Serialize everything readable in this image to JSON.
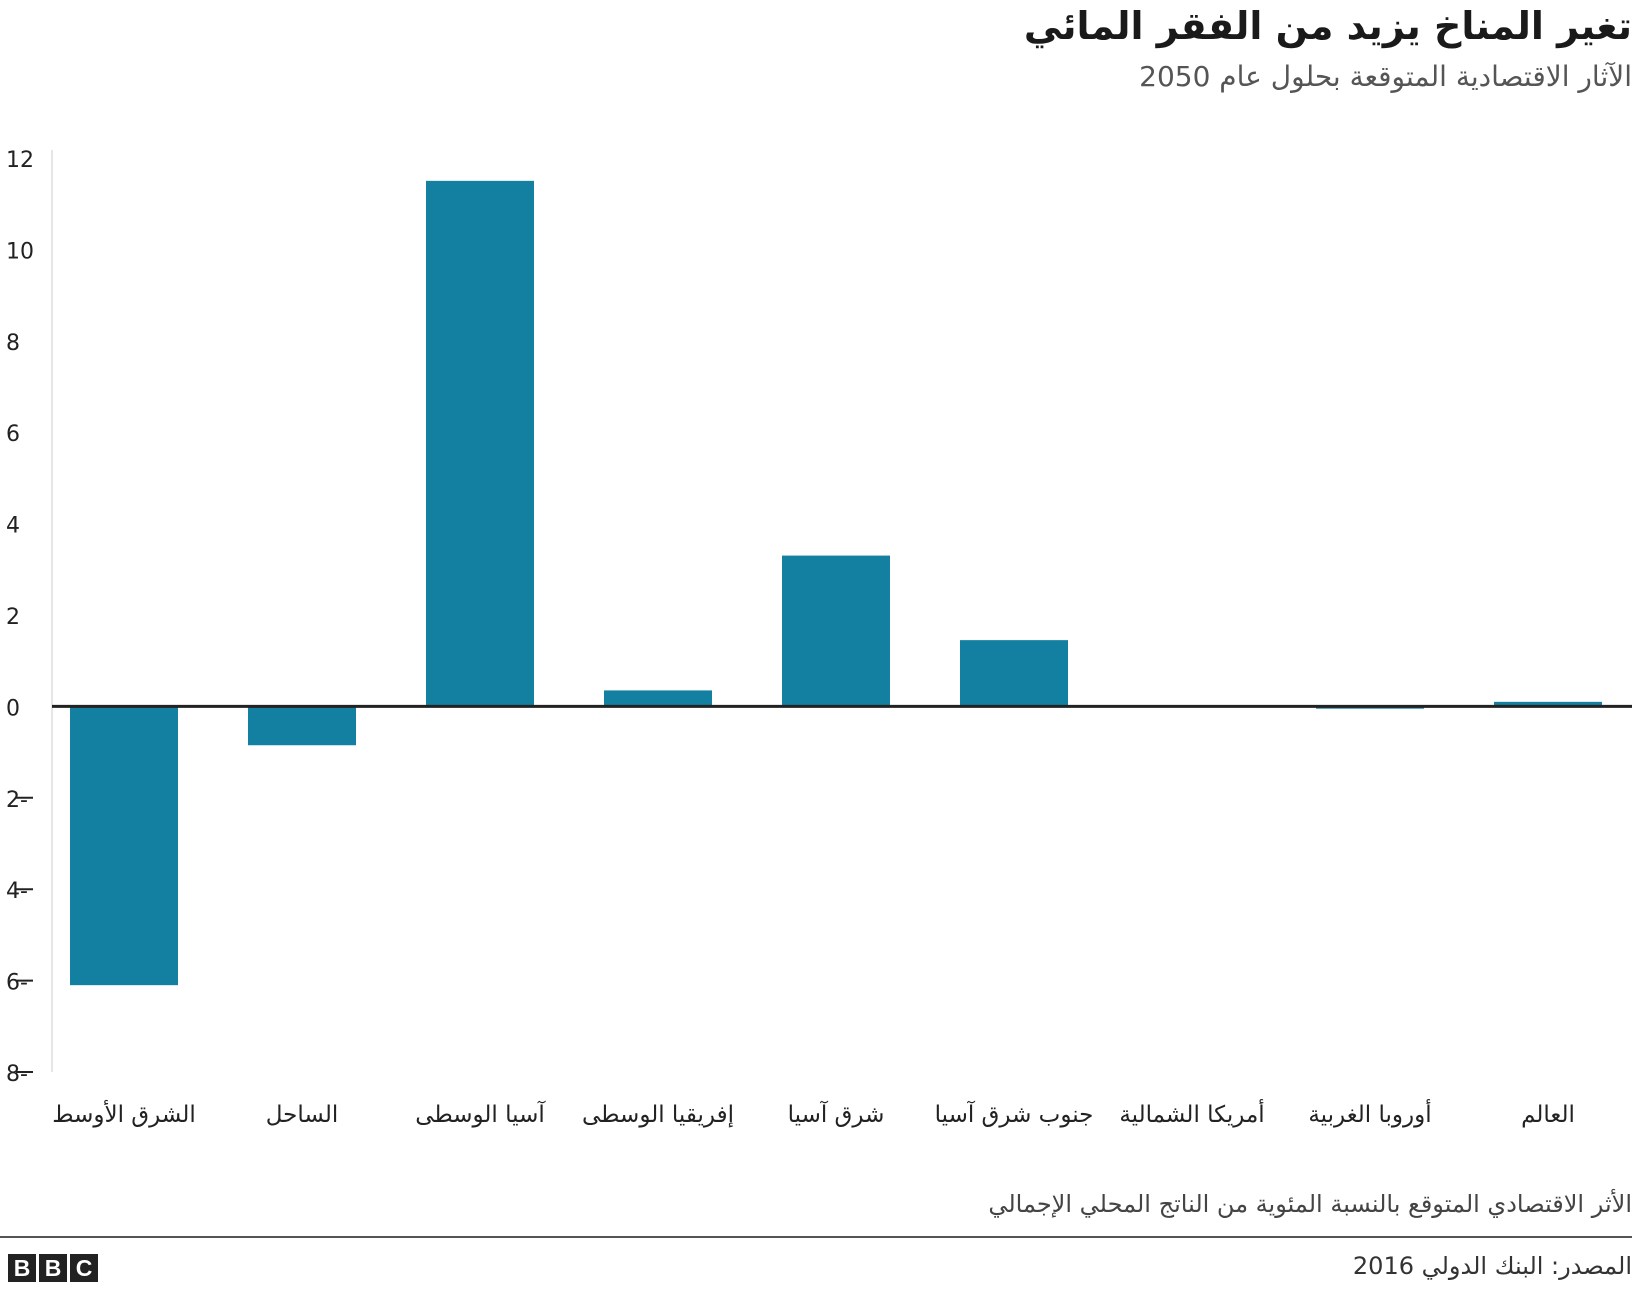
{
  "chart_data": {
    "type": "bar",
    "title": "تغير المناخ يزيد من الفقر المائي",
    "subtitle": "الآثار الاقتصادية المتوقعة بحلول عام 2050",
    "categories": [
      "الشرق الأوسط",
      "الساحل",
      "آسيا الوسطى",
      "إفريقيا الوسطى",
      "شرق آسيا",
      "جنوب شرق آسيا",
      "أمريكا الشمالية",
      "أوروبا الغربية",
      "العالم"
    ],
    "values": [
      -6.1,
      -0.85,
      11.5,
      0.35,
      3.3,
      1.45,
      0.0,
      -0.05,
      0.1
    ],
    "ylim": [
      -8,
      12
    ],
    "yticks": [
      12,
      10,
      8,
      6,
      4,
      2,
      0,
      -2,
      -4,
      -6,
      -8
    ],
    "ytick_labels": [
      "12",
      "10",
      "8",
      "6",
      "4",
      "2",
      "0",
      "2-",
      "4-",
      "6-",
      "8-"
    ],
    "ylabel": "",
    "xlabel": "",
    "grid": false,
    "bar_color": "#1380A1"
  },
  "footnote": "الأثر الاقتصادي المتوقع بالنسبة المئوية من الناتج المحلي الإجمالي",
  "source": "المصدر: البنك الدولي 2016",
  "logo": [
    "B",
    "B",
    "C"
  ]
}
